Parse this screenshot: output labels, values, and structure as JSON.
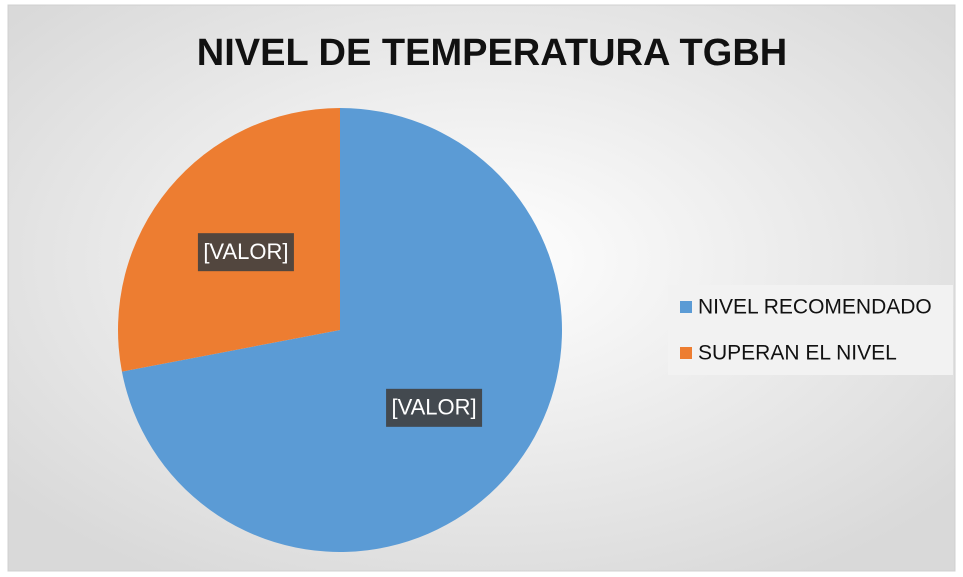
{
  "chart_data": {
    "type": "pie",
    "title": "NIVEL DE TEMPERATURA TGBH",
    "categories": [
      "NIVEL RECOMENDADO",
      "SUPERAN EL NIVEL"
    ],
    "values": [
      72,
      28
    ],
    "value_labels": [
      "[VALOR]",
      "[VALOR]"
    ],
    "colors": [
      "#5b9bd5",
      "#ed7d31"
    ],
    "legend": "right"
  }
}
